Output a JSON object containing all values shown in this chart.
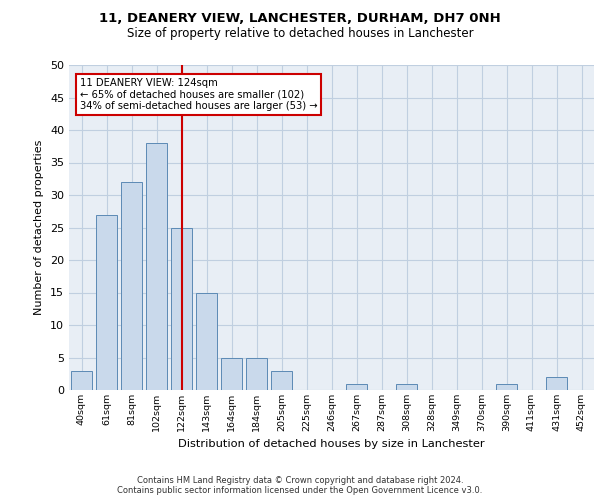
{
  "title1": "11, DEANERY VIEW, LANCHESTER, DURHAM, DH7 0NH",
  "title2": "Size of property relative to detached houses in Lanchester",
  "xlabel": "Distribution of detached houses by size in Lanchester",
  "ylabel": "Number of detached properties",
  "categories": [
    "40sqm",
    "61sqm",
    "81sqm",
    "102sqm",
    "122sqm",
    "143sqm",
    "164sqm",
    "184sqm",
    "205sqm",
    "225sqm",
    "246sqm",
    "267sqm",
    "287sqm",
    "308sqm",
    "328sqm",
    "349sqm",
    "370sqm",
    "390sqm",
    "411sqm",
    "431sqm",
    "452sqm"
  ],
  "values": [
    3,
    27,
    32,
    38,
    25,
    15,
    5,
    5,
    3,
    0,
    0,
    1,
    0,
    1,
    0,
    0,
    0,
    1,
    0,
    2,
    0
  ],
  "bar_color": "#c9d9eb",
  "bar_edge_color": "#5c8ab5",
  "property_line_index": 4,
  "annotation_line1": "11 DEANERY VIEW: 124sqm",
  "annotation_line2": "← 65% of detached houses are smaller (102)",
  "annotation_line3": "34% of semi-detached houses are larger (53) →",
  "red_line_color": "#cc0000",
  "annotation_box_color": "#ffffff",
  "annotation_box_edge_color": "#cc0000",
  "grid_color": "#c0cfe0",
  "background_color": "#e8eef5",
  "ylim": [
    0,
    50
  ],
  "yticks": [
    0,
    5,
    10,
    15,
    20,
    25,
    30,
    35,
    40,
    45,
    50
  ],
  "footer1": "Contains HM Land Registry data © Crown copyright and database right 2024.",
  "footer2": "Contains public sector information licensed under the Open Government Licence v3.0."
}
